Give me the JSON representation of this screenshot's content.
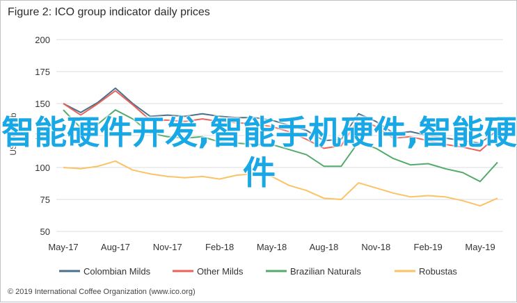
{
  "title": "Figure 2: ICO group indicator daily prices",
  "footer": "© 2019 International Coffee Organization (www.ico.org)",
  "overlay_text": "智能硬件开发,智能手机硬件,智能硬件",
  "chart_data": {
    "type": "line",
    "ylabel": "US cents/lb",
    "ylim": [
      50,
      200
    ],
    "yticks": [
      50,
      75,
      100,
      125,
      150,
      175,
      200
    ],
    "grid": true,
    "legend_position": "bottom",
    "x": [
      "2017-05",
      "2017-06",
      "2017-07",
      "2017-08",
      "2017-09",
      "2017-10",
      "2017-11",
      "2017-12",
      "2018-01",
      "2018-02",
      "2018-03",
      "2018-04",
      "2018-05",
      "2018-06",
      "2018-07",
      "2018-08",
      "2018-09",
      "2018-10",
      "2018-11",
      "2018-12",
      "2019-01",
      "2019-02",
      "2019-03",
      "2019-04",
      "2019-05",
      "2019-06"
    ],
    "xticks": [
      "May-17",
      "Aug-17",
      "Nov-17",
      "Feb-18",
      "May-18",
      "Aug-18",
      "Nov-18",
      "Feb-19",
      "May-19"
    ],
    "series": [
      {
        "name": "Colombian Milds",
        "color": "#4a6f8a",
        "values": [
          150,
          143,
          151,
          162,
          150,
          140,
          141,
          140,
          142,
          140,
          139,
          139,
          137,
          133,
          129,
          121,
          122,
          142,
          136,
          127,
          128,
          125,
          123,
          121,
          119,
          129
        ]
      },
      {
        "name": "Other Milds",
        "color": "#e9625a",
        "values": [
          150,
          141,
          150,
          160,
          149,
          137,
          137,
          136,
          138,
          136,
          135,
          134,
          132,
          128,
          122,
          115,
          117,
          138,
          132,
          123,
          124,
          121,
          118,
          116,
          113,
          125
        ]
      },
      {
        "name": "Brazilian Naturals",
        "color": "#53ab6b",
        "values": [
          145,
          131,
          134,
          145,
          138,
          127,
          124,
          123,
          124,
          120,
          119,
          118,
          118,
          114,
          110,
          101,
          101,
          120,
          115,
          107,
          102,
          103,
          99,
          96,
          89,
          104
        ]
      },
      {
        "name": "Robustas",
        "color": "#fbc266",
        "values": [
          100,
          99,
          101,
          105,
          98,
          95,
          93,
          92,
          93,
          91,
          94,
          95,
          93,
          86,
          82,
          76,
          75,
          88,
          84,
          80,
          77,
          78,
          77,
          74,
          70,
          76
        ]
      }
    ]
  }
}
